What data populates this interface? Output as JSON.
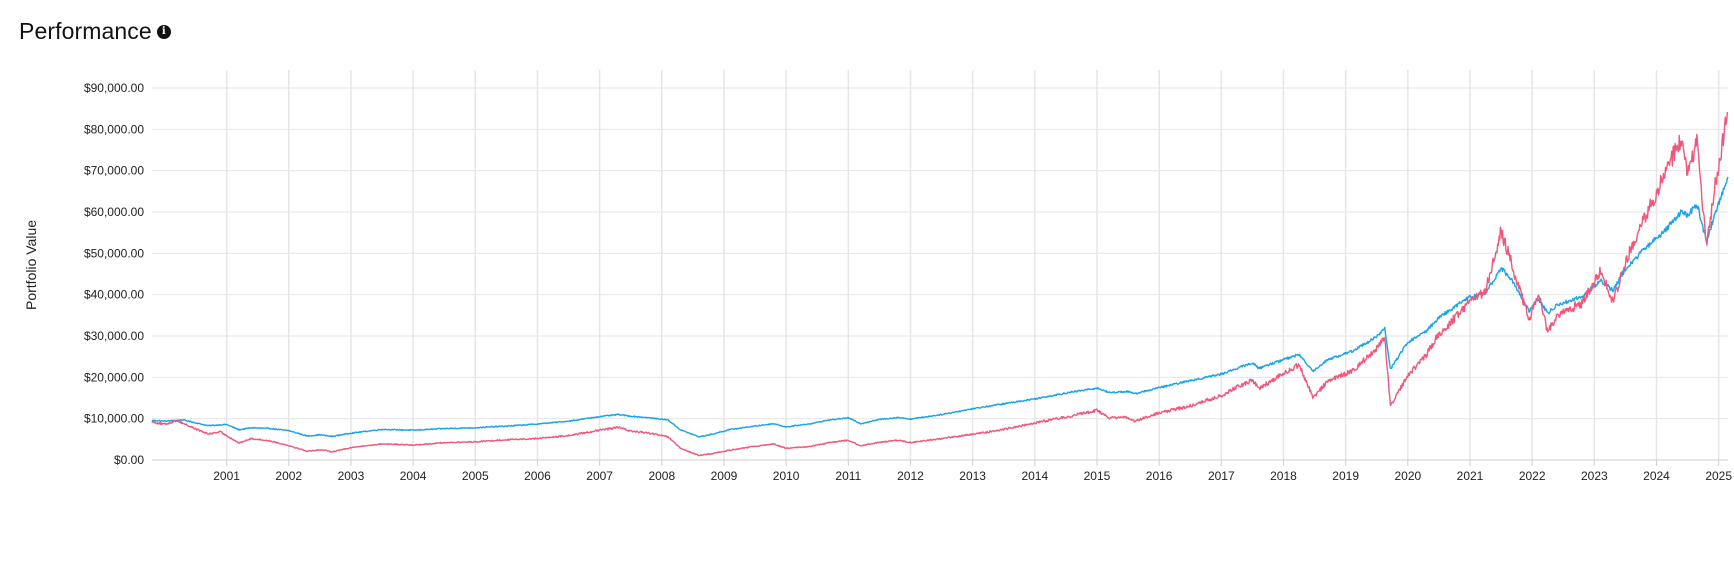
{
  "header": {
    "title": "Performance",
    "info_icon": "info-circle-icon",
    "info_glyph": "i"
  },
  "chart_data": {
    "type": "line",
    "title": "Performance",
    "xlabel": "",
    "ylabel": "Portfolio Value",
    "xlim": [
      2000.3,
      2025.65
    ],
    "ylim": [
      0,
      90000
    ],
    "grid": true,
    "legend": "none",
    "y_ticks": [
      0,
      10000,
      20000,
      30000,
      40000,
      50000,
      60000,
      70000,
      80000,
      90000
    ],
    "y_tick_labels": [
      "$0.00",
      "$10,000.00",
      "$20,000.00",
      "$30,000.00",
      "$40,000.00",
      "$50,000.00",
      "$60,000.00",
      "$70,000.00",
      "$80,000.00",
      "$90,000.00"
    ],
    "x_ticks": [
      "2001",
      "2002",
      "2003",
      "2004",
      "2005",
      "2006",
      "2007",
      "2008",
      "2009",
      "2010",
      "2011",
      "2012",
      "2013",
      "2014",
      "2015",
      "2016",
      "2017",
      "2018",
      "2019",
      "2020",
      "2021",
      "2022",
      "2023",
      "2024",
      "2025"
    ],
    "series": [
      {
        "color": "#1aa3e8",
        "points": [
          [
            2000.3,
            9600
          ],
          [
            2000.5,
            9400
          ],
          [
            2000.8,
            9700
          ],
          [
            2001.0,
            9000
          ],
          [
            2001.2,
            8300
          ],
          [
            2001.5,
            8600
          ],
          [
            2001.7,
            7300
          ],
          [
            2001.9,
            7800
          ],
          [
            2002.2,
            7600
          ],
          [
            2002.5,
            7100
          ],
          [
            2002.8,
            5800
          ],
          [
            2003.0,
            6100
          ],
          [
            2003.2,
            5700
          ],
          [
            2003.5,
            6500
          ],
          [
            2004.0,
            7400
          ],
          [
            2004.5,
            7200
          ],
          [
            2005.0,
            7600
          ],
          [
            2005.5,
            7800
          ],
          [
            2006.0,
            8200
          ],
          [
            2006.5,
            8700
          ],
          [
            2007.0,
            9400
          ],
          [
            2007.5,
            10500
          ],
          [
            2007.8,
            11000
          ],
          [
            2008.0,
            10600
          ],
          [
            2008.3,
            10200
          ],
          [
            2008.6,
            9700
          ],
          [
            2008.8,
            7300
          ],
          [
            2009.1,
            5600
          ],
          [
            2009.3,
            6200
          ],
          [
            2009.6,
            7400
          ],
          [
            2010.0,
            8200
          ],
          [
            2010.3,
            8800
          ],
          [
            2010.5,
            8000
          ],
          [
            2010.9,
            8800
          ],
          [
            2011.2,
            9700
          ],
          [
            2011.5,
            10200
          ],
          [
            2011.7,
            8800
          ],
          [
            2012.0,
            9800
          ],
          [
            2012.3,
            10300
          ],
          [
            2012.5,
            9900
          ],
          [
            2013.0,
            11000
          ],
          [
            2013.5,
            12400
          ],
          [
            2014.0,
            13600
          ],
          [
            2014.5,
            14800
          ],
          [
            2015.0,
            16200
          ],
          [
            2015.5,
            17400
          ],
          [
            2015.7,
            16300
          ],
          [
            2016.0,
            16600
          ],
          [
            2016.1,
            16000
          ],
          [
            2016.5,
            17500
          ],
          [
            2017.0,
            19200
          ],
          [
            2017.5,
            20800
          ],
          [
            2018.0,
            23500
          ],
          [
            2018.1,
            22200
          ],
          [
            2018.5,
            24300
          ],
          [
            2018.75,
            25500
          ],
          [
            2018.98,
            21500
          ],
          [
            2019.2,
            24200
          ],
          [
            2019.6,
            26300
          ],
          [
            2020.0,
            29800
          ],
          [
            2020.13,
            31800
          ],
          [
            2020.22,
            22000
          ],
          [
            2020.5,
            28500
          ],
          [
            2020.8,
            31200
          ],
          [
            2021.0,
            34500
          ],
          [
            2021.5,
            39500
          ],
          [
            2021.75,
            40300
          ],
          [
            2022.0,
            46500
          ],
          [
            2022.2,
            43000
          ],
          [
            2022.45,
            36000
          ],
          [
            2022.6,
            39000
          ],
          [
            2022.75,
            35500
          ],
          [
            2022.9,
            37500
          ],
          [
            2023.3,
            39500
          ],
          [
            2023.6,
            43500
          ],
          [
            2023.8,
            41000
          ],
          [
            2024.0,
            46200
          ],
          [
            2024.3,
            51000
          ],
          [
            2024.6,
            55000
          ],
          [
            2024.9,
            60000
          ],
          [
            2025.0,
            59000
          ],
          [
            2025.15,
            62000
          ],
          [
            2025.3,
            53000
          ],
          [
            2025.5,
            62000
          ],
          [
            2025.65,
            68500
          ]
        ]
      },
      {
        "color": "#f0577a",
        "points": [
          [
            2000.3,
            9300
          ],
          [
            2000.5,
            8600
          ],
          [
            2000.7,
            9600
          ],
          [
            2000.9,
            8200
          ],
          [
            2001.2,
            6300
          ],
          [
            2001.4,
            6800
          ],
          [
            2001.7,
            4100
          ],
          [
            2001.9,
            5200
          ],
          [
            2002.2,
            4600
          ],
          [
            2002.5,
            3500
          ],
          [
            2002.8,
            2100
          ],
          [
            2003.0,
            2500
          ],
          [
            2003.2,
            2000
          ],
          [
            2003.5,
            3000
          ],
          [
            2004.0,
            3900
          ],
          [
            2004.5,
            3600
          ],
          [
            2005.0,
            4200
          ],
          [
            2005.5,
            4400
          ],
          [
            2006.0,
            4900
          ],
          [
            2006.5,
            5200
          ],
          [
            2007.0,
            5900
          ],
          [
            2007.5,
            7200
          ],
          [
            2007.8,
            7900
          ],
          [
            2008.0,
            7000
          ],
          [
            2008.3,
            6500
          ],
          [
            2008.6,
            5600
          ],
          [
            2008.8,
            2800
          ],
          [
            2009.1,
            1100
          ],
          [
            2009.3,
            1500
          ],
          [
            2009.6,
            2400
          ],
          [
            2010.0,
            3300
          ],
          [
            2010.3,
            3900
          ],
          [
            2010.5,
            2800
          ],
          [
            2010.9,
            3300
          ],
          [
            2011.2,
            4200
          ],
          [
            2011.5,
            4800
          ],
          [
            2011.7,
            3400
          ],
          [
            2012.0,
            4300
          ],
          [
            2012.3,
            4800
          ],
          [
            2012.5,
            4200
          ],
          [
            2013.0,
            5200
          ],
          [
            2013.5,
            6200
          ],
          [
            2014.0,
            7400
          ],
          [
            2014.5,
            9000
          ],
          [
            2015.0,
            10400
          ],
          [
            2015.5,
            12000
          ],
          [
            2015.7,
            10200
          ],
          [
            2016.0,
            10300
          ],
          [
            2016.1,
            9300
          ],
          [
            2016.5,
            11400
          ],
          [
            2017.0,
            13100
          ],
          [
            2017.5,
            15600
          ],
          [
            2018.0,
            19500
          ],
          [
            2018.1,
            17200
          ],
          [
            2018.5,
            21000
          ],
          [
            2018.75,
            23000
          ],
          [
            2018.98,
            15000
          ],
          [
            2019.2,
            19000
          ],
          [
            2019.6,
            21500
          ],
          [
            2020.0,
            27000
          ],
          [
            2020.13,
            29500
          ],
          [
            2020.22,
            13000
          ],
          [
            2020.5,
            20500
          ],
          [
            2020.8,
            25500
          ],
          [
            2021.0,
            30500
          ],
          [
            2021.5,
            38000
          ],
          [
            2021.75,
            41000
          ],
          [
            2022.0,
            55500
          ],
          [
            2022.2,
            46000
          ],
          [
            2022.45,
            34000
          ],
          [
            2022.6,
            40000
          ],
          [
            2022.75,
            31000
          ],
          [
            2022.9,
            35000
          ],
          [
            2023.3,
            38000
          ],
          [
            2023.6,
            46000
          ],
          [
            2023.8,
            38000
          ],
          [
            2024.0,
            48000
          ],
          [
            2024.3,
            58000
          ],
          [
            2024.6,
            68000
          ],
          [
            2024.9,
            78000
          ],
          [
            2025.0,
            70000
          ],
          [
            2025.15,
            77000
          ],
          [
            2025.3,
            52000
          ],
          [
            2025.5,
            72000
          ],
          [
            2025.65,
            84000
          ]
        ]
      }
    ]
  }
}
